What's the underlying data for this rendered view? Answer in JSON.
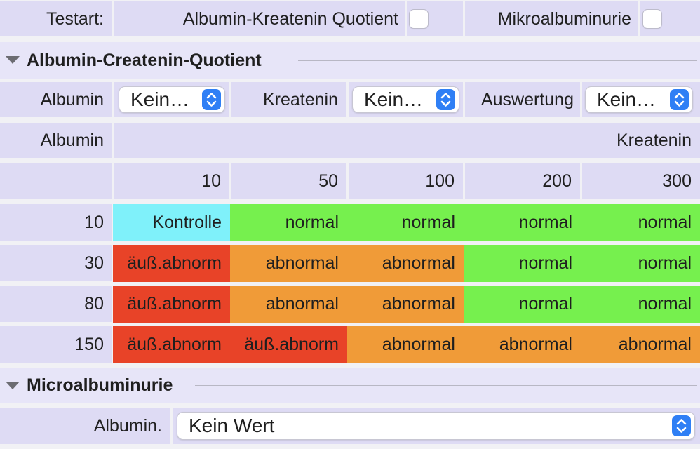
{
  "colors": {
    "kontrolle": "#7ff1fa",
    "normal": "#76f04e",
    "abnormal": "#f09b38",
    "aeuss_abnorm": "#e84328",
    "accent": "#2f7ff5"
  },
  "test_row": {
    "label": "Testart:",
    "option1_label": "Albumin-Kreatenin Quotient",
    "option1_checked": false,
    "option2_label": "Mikroalbuminurie",
    "option2_checked": false
  },
  "section1": {
    "title": "Albumin-Createnin-Quotient",
    "expanded": true
  },
  "selectors": {
    "albumin_label": "Albumin",
    "albumin_value": "Kein…",
    "kreatenin_label": "Kreatenin",
    "kreatenin_value": "Kein…",
    "auswertung_label": "Auswertung",
    "auswertung_value": "Kein…"
  },
  "matrix": {
    "row_axis_label": "Albumin",
    "col_axis_label": "Kreatenin",
    "columns": [
      "10",
      "50",
      "100",
      "200",
      "300"
    ],
    "rows": [
      {
        "albumin": "10",
        "cells": [
          {
            "text": "Kontrolle",
            "status": "kontrolle"
          },
          {
            "text": "normal",
            "status": "normal"
          },
          {
            "text": "normal",
            "status": "normal"
          },
          {
            "text": "normal",
            "status": "normal"
          },
          {
            "text": "normal",
            "status": "normal"
          }
        ]
      },
      {
        "albumin": "30",
        "cells": [
          {
            "text": "äuß.abnorm",
            "status": "aeuss_abnorm"
          },
          {
            "text": "abnormal",
            "status": "abnormal"
          },
          {
            "text": "abnormal",
            "status": "abnormal"
          },
          {
            "text": "normal",
            "status": "normal"
          },
          {
            "text": "normal",
            "status": "normal"
          }
        ]
      },
      {
        "albumin": "80",
        "cells": [
          {
            "text": "äuß.abnorm",
            "status": "aeuss_abnorm"
          },
          {
            "text": "abnormal",
            "status": "abnormal"
          },
          {
            "text": "abnormal",
            "status": "abnormal"
          },
          {
            "text": "normal",
            "status": "normal"
          },
          {
            "text": "normal",
            "status": "normal"
          }
        ]
      },
      {
        "albumin": "150",
        "cells": [
          {
            "text": "äuß.abnorm",
            "status": "aeuss_abnorm"
          },
          {
            "text": "äuß.abnorm",
            "status": "aeuss_abnorm"
          },
          {
            "text": "abnormal",
            "status": "abnormal"
          },
          {
            "text": "abnormal",
            "status": "abnormal"
          },
          {
            "text": "abnormal",
            "status": "abnormal"
          }
        ]
      }
    ]
  },
  "section2": {
    "title": "Microalbuminurie",
    "expanded": true
  },
  "micro": {
    "label": "Albumin.",
    "value": "Kein Wert"
  },
  "icons": {
    "section_toggle": "disclosure-triangle-icon",
    "popup": "up-down-chevron-icon"
  }
}
